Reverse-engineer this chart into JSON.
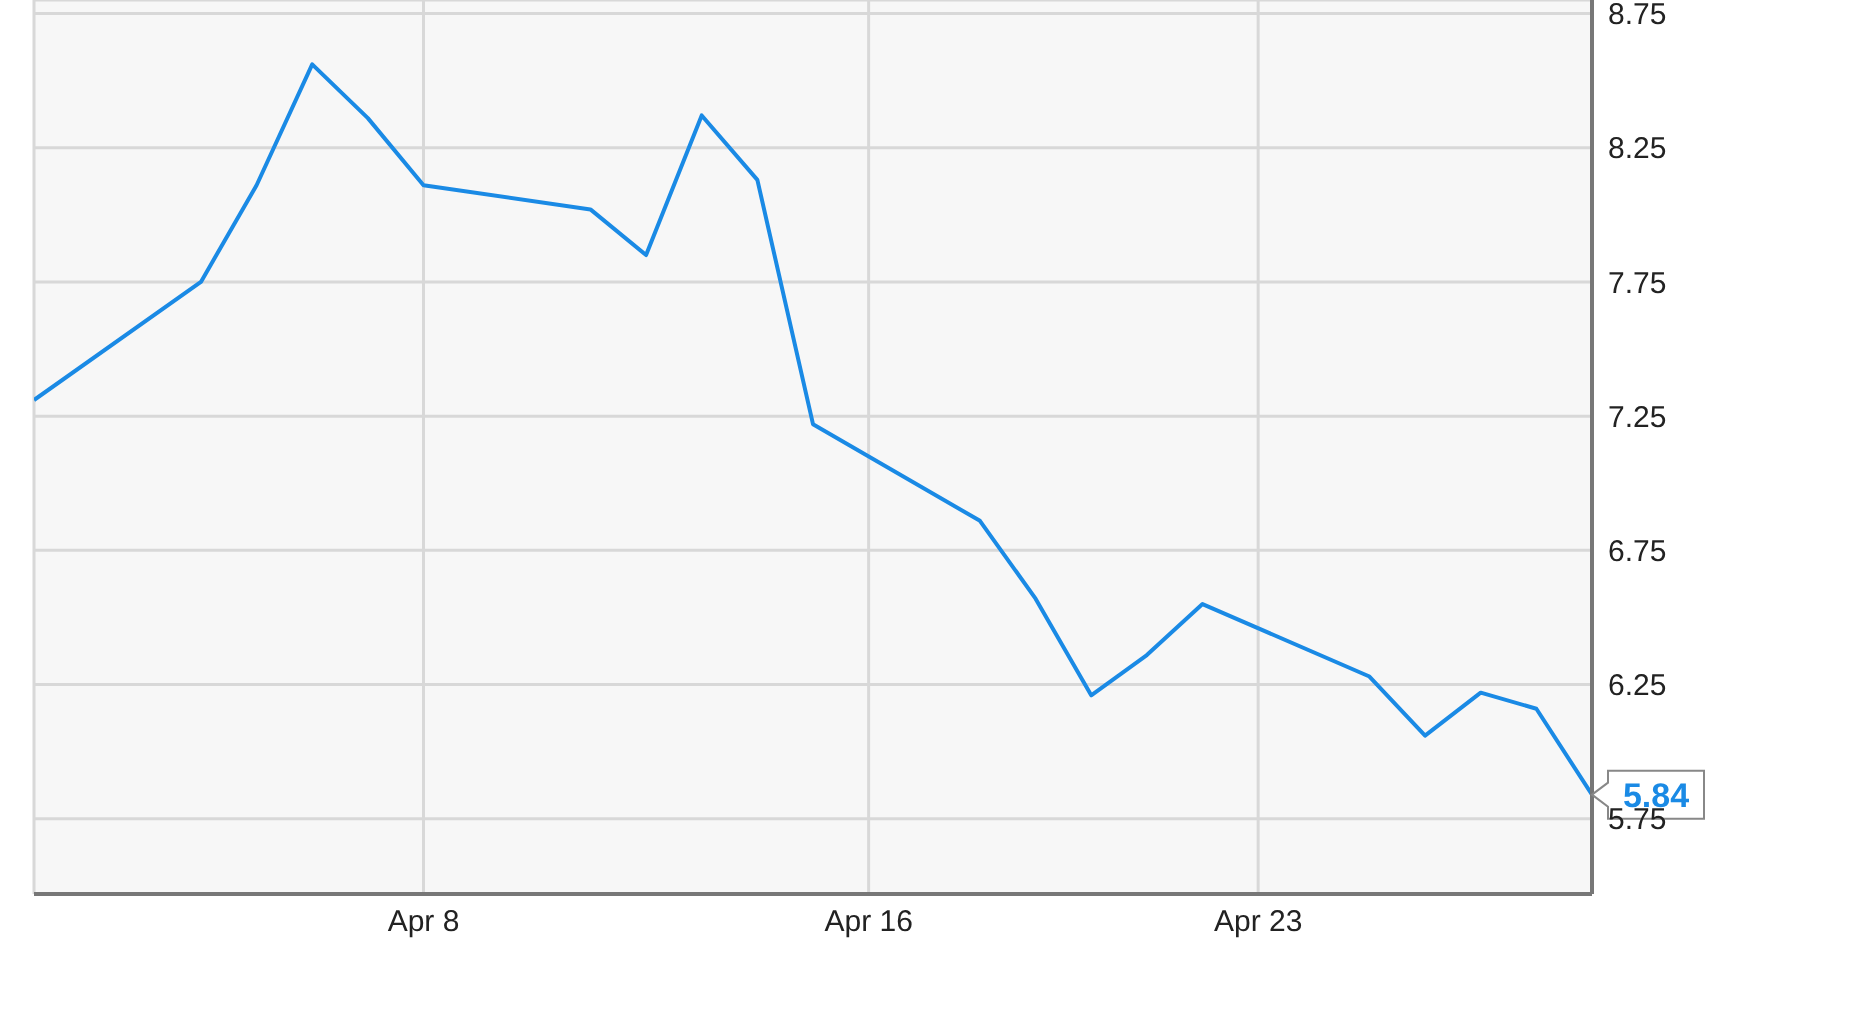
{
  "chart_data": {
    "type": "line",
    "x": [
      "--04-01",
      "--04-04",
      "--04-05",
      "--04-06",
      "--04-07",
      "--04-08",
      "--04-11",
      "--04-12",
      "--04-13",
      "--04-14",
      "--04-15",
      "--04-18",
      "--04-19",
      "--04-20",
      "--04-21",
      "--04-22",
      "--04-25",
      "--04-26",
      "--04-27",
      "--04-28",
      "--04-29"
    ],
    "series": [
      {
        "color": "#1a8ae5",
        "values": [
          7.31,
          7.75,
          8.11,
          8.56,
          8.36,
          8.11,
          8.02,
          7.85,
          8.37,
          8.13,
          7.22,
          6.86,
          6.57,
          6.21,
          6.36,
          6.55,
          6.28,
          6.06,
          6.22,
          6.16,
          5.84
        ]
      }
    ],
    "xlim": [
      "--04-01",
      "--04-29"
    ],
    "xticks": [
      {
        "value": "--04-08",
        "label": "Apr 8"
      },
      {
        "value": "--04-16",
        "label": "Apr 16"
      },
      {
        "value": "--04-23",
        "label": "Apr 23"
      }
    ],
    "ylim": [
      5.47,
      8.8
    ],
    "yticks": [
      5.75,
      6.25,
      6.75,
      7.25,
      7.75,
      8.25,
      8.75
    ],
    "grid": true,
    "marker": "none",
    "line_style": "solid",
    "annotations": [
      {
        "text": "5.84",
        "x": "--04-29",
        "y": 5.84
      }
    ]
  }
}
